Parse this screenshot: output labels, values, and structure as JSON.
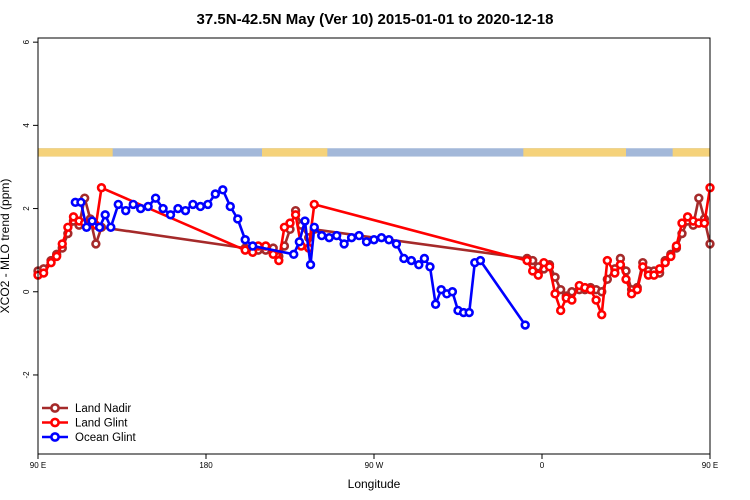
{
  "chart_data": {
    "type": "line",
    "title": "37.5N-42.5N May (Ver 10)   2015-01-01 to 2020-12-18",
    "xlabel": "Longitude",
    "ylabel": "XCO2 - MLO trend (ppm)",
    "xlim": [
      90,
      450
    ],
    "ylim": [
      -3.9,
      6.1
    ],
    "x_ticks": [
      {
        "value": 90,
        "label": "90 E"
      },
      {
        "value": 180,
        "label": "180"
      },
      {
        "value": 270,
        "label": "90 W"
      },
      {
        "value": 360,
        "label": "0"
      },
      {
        "value": 450,
        "label": "90 E"
      },
      {
        "value": 540,
        "label": "180"
      }
    ],
    "y_ticks": [
      {
        "value": -2,
        "label": "-2"
      },
      {
        "value": 0,
        "label": "0"
      },
      {
        "value": 2,
        "label": "2"
      },
      {
        "value": 4,
        "label": "4"
      },
      {
        "value": 6,
        "label": "6"
      }
    ],
    "land_band": {
      "y_range": [
        3.25,
        3.45
      ],
      "land_color": "#f5d27a",
      "ocean_color": "#a3b8d9",
      "land_segments": [
        [
          90,
          130
        ],
        [
          210,
          245
        ],
        [
          350,
          405
        ],
        [
          430,
          450
        ]
      ]
    },
    "legend_position": "bottom-left",
    "series": [
      {
        "name": "Land Nadir",
        "color": "#a52a2a",
        "values": [
          [
            90,
            0.5
          ],
          [
            93,
            0.55
          ],
          [
            97,
            0.75
          ],
          [
            100,
            0.9
          ],
          [
            103,
            1.05
          ],
          [
            106,
            1.4
          ],
          [
            109,
            1.7
          ],
          [
            112,
            1.6
          ],
          [
            115,
            2.25
          ],
          [
            118,
            1.75
          ],
          [
            121,
            1.15
          ],
          [
            124,
            1.55
          ],
          [
            201,
            1.05
          ],
          [
            205,
            1.05
          ],
          [
            208,
            1.0
          ],
          [
            212,
            1.0
          ],
          [
            216,
            1.05
          ],
          [
            219,
            0.85
          ],
          [
            222,
            1.1
          ],
          [
            225,
            1.5
          ],
          [
            228,
            1.95
          ],
          [
            231,
            1.6
          ],
          [
            235,
            1.3
          ],
          [
            238,
            1.5
          ],
          [
            352,
            0.8
          ],
          [
            355,
            0.75
          ],
          [
            358,
            0.6
          ],
          [
            361,
            0.55
          ],
          [
            364,
            0.65
          ],
          [
            367,
            0.35
          ],
          [
            370,
            0.05
          ],
          [
            373,
            -0.1
          ],
          [
            376,
            0.0
          ],
          [
            380,
            0.05
          ],
          [
            383,
            0.05
          ],
          [
            386,
            0.1
          ],
          [
            389,
            0.05
          ],
          [
            392,
            0.0
          ],
          [
            395,
            0.3
          ],
          [
            399,
            0.55
          ],
          [
            402,
            0.8
          ],
          [
            405,
            0.5
          ],
          [
            408,
            0.05
          ],
          [
            411,
            0.1
          ],
          [
            414,
            0.7
          ],
          [
            417,
            0.5
          ],
          [
            420,
            0.5
          ],
          [
            423,
            0.45
          ],
          [
            426,
            0.75
          ],
          [
            429,
            0.9
          ],
          [
            432,
            1.05
          ],
          [
            435,
            1.4
          ],
          [
            438,
            1.7
          ],
          [
            441,
            1.6
          ],
          [
            444,
            2.25
          ],
          [
            447,
            1.75
          ],
          [
            450,
            1.15
          ]
        ]
      },
      {
        "name": "Land Glint",
        "color": "#ff0000",
        "values": [
          [
            90,
            0.4
          ],
          [
            93,
            0.45
          ],
          [
            97,
            0.7
          ],
          [
            100,
            0.85
          ],
          [
            103,
            1.15
          ],
          [
            106,
            1.55
          ],
          [
            109,
            1.8
          ],
          [
            112,
            1.7
          ],
          [
            115,
            1.65
          ],
          [
            118,
            1.65
          ],
          [
            121,
            1.6
          ],
          [
            124,
            2.5
          ],
          [
            201,
            1.0
          ],
          [
            205,
            0.95
          ],
          [
            208,
            1.1
          ],
          [
            212,
            1.1
          ],
          [
            216,
            0.9
          ],
          [
            219,
            0.75
          ],
          [
            222,
            1.55
          ],
          [
            225,
            1.65
          ],
          [
            228,
            1.85
          ],
          [
            231,
            1.1
          ],
          [
            235,
            1.05
          ],
          [
            238,
            2.1
          ],
          [
            352,
            0.75
          ],
          [
            355,
            0.5
          ],
          [
            358,
            0.4
          ],
          [
            361,
            0.7
          ],
          [
            364,
            0.6
          ],
          [
            367,
            -0.05
          ],
          [
            370,
            -0.45
          ],
          [
            373,
            -0.15
          ],
          [
            376,
            -0.2
          ],
          [
            380,
            0.15
          ],
          [
            383,
            0.1
          ],
          [
            386,
            0.05
          ],
          [
            389,
            -0.2
          ],
          [
            392,
            -0.55
          ],
          [
            395,
            0.75
          ],
          [
            399,
            0.45
          ],
          [
            402,
            0.65
          ],
          [
            405,
            0.3
          ],
          [
            408,
            -0.05
          ],
          [
            411,
            0.05
          ],
          [
            414,
            0.6
          ],
          [
            417,
            0.4
          ],
          [
            420,
            0.4
          ],
          [
            423,
            0.55
          ],
          [
            426,
            0.7
          ],
          [
            429,
            0.85
          ],
          [
            432,
            1.1
          ],
          [
            435,
            1.65
          ],
          [
            438,
            1.8
          ],
          [
            441,
            1.7
          ],
          [
            444,
            1.65
          ],
          [
            447,
            1.65
          ],
          [
            450,
            2.5
          ]
        ]
      },
      {
        "name": "Ocean Glint",
        "color": "#0000ff",
        "values": [
          [
            110,
            2.15
          ],
          [
            113,
            2.15
          ],
          [
            116,
            1.55
          ],
          [
            119,
            1.7
          ],
          [
            123,
            1.55
          ],
          [
            126,
            1.85
          ],
          [
            129,
            1.55
          ],
          [
            133,
            2.1
          ],
          [
            137,
            1.95
          ],
          [
            141,
            2.1
          ],
          [
            145,
            2.0
          ],
          [
            149,
            2.05
          ],
          [
            153,
            2.25
          ],
          [
            157,
            2.0
          ],
          [
            161,
            1.85
          ],
          [
            165,
            2.0
          ],
          [
            169,
            1.95
          ],
          [
            173,
            2.1
          ],
          [
            177,
            2.05
          ],
          [
            181,
            2.1
          ],
          [
            185,
            2.35
          ],
          [
            189,
            2.45
          ],
          [
            193,
            2.05
          ],
          [
            197,
            1.75
          ],
          [
            201,
            1.25
          ],
          [
            205,
            1.1
          ],
          [
            227,
            0.9
          ],
          [
            230,
            1.2
          ],
          [
            233,
            1.7
          ],
          [
            236,
            0.65
          ],
          [
            238,
            1.55
          ],
          [
            242,
            1.35
          ],
          [
            246,
            1.3
          ],
          [
            250,
            1.35
          ],
          [
            254,
            1.15
          ],
          [
            258,
            1.3
          ],
          [
            262,
            1.35
          ],
          [
            266,
            1.2
          ],
          [
            270,
            1.25
          ],
          [
            274,
            1.3
          ],
          [
            278,
            1.25
          ],
          [
            282,
            1.15
          ],
          [
            286,
            0.8
          ],
          [
            290,
            0.75
          ],
          [
            294,
            0.65
          ],
          [
            297,
            0.8
          ],
          [
            300,
            0.6
          ],
          [
            303,
            -0.3
          ],
          [
            306,
            0.05
          ],
          [
            309,
            -0.05
          ],
          [
            312,
            0.0
          ],
          [
            315,
            -0.45
          ],
          [
            318,
            -0.5
          ],
          [
            321,
            -0.5
          ],
          [
            324,
            0.7
          ],
          [
            327,
            0.75
          ],
          [
            351,
            -0.8
          ]
        ]
      }
    ]
  }
}
